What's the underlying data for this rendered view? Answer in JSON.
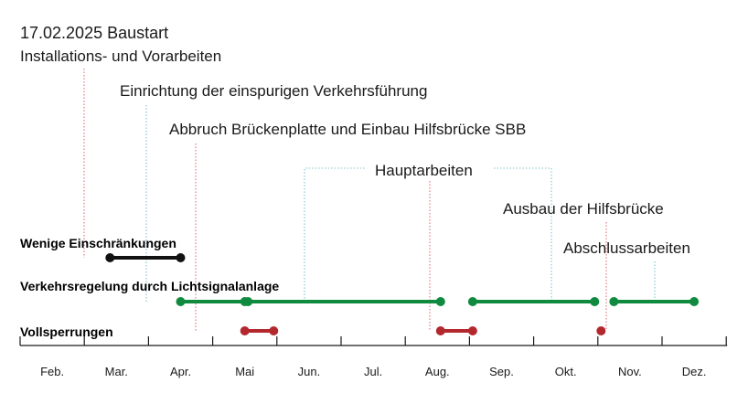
{
  "header": {
    "start_date": "17.02.2025 Baustart",
    "start_subtitle": "Installations- und Vorarbeiten"
  },
  "phases": [
    {
      "label": "Einrichtung der einspurigen Verkehrsführung"
    },
    {
      "label": "Abbruch Brückenplatte und Einbau Hilfsbrücke SBB"
    },
    {
      "label": "Hauptarbeiten"
    },
    {
      "label": "Ausbau der Hilfsbrücke"
    },
    {
      "label": "Abschlussarbeiten"
    }
  ],
  "legend": {
    "few": {
      "label": "Wenige Einschränkungen",
      "color": "#111111"
    },
    "signals": {
      "label": "Verkehrsregelung durch Lichtsignalanlage",
      "color": "#0f8a3e"
    },
    "closures": {
      "label": "Vollsperrungen",
      "color": "#b3282d"
    }
  },
  "months": [
    "Feb.",
    "Mar.",
    "Apr.",
    "Mai",
    "Jun.",
    "Jul.",
    "Aug.",
    "Sep.",
    "Okt.",
    "Nov.",
    "Dez."
  ],
  "connector_colors": {
    "red": "#d9737a",
    "teal": "#7fc4c9"
  },
  "segments": {
    "few": [
      [
        1.4,
        2.5
      ]
    ],
    "signals": [
      [
        2.5,
        3.5
      ],
      [
        3.55,
        6.55
      ],
      [
        7.05,
        8.95
      ],
      [
        9.25,
        10.5
      ]
    ],
    "closures": [
      [
        3.5,
        3.95
      ],
      [
        6.55,
        7.05
      ],
      [
        9.05,
        9.05
      ]
    ]
  }
}
